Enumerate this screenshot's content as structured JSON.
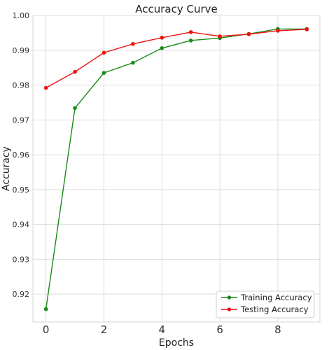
{
  "chart_data": {
    "type": "line",
    "title": "Accuracy Curve",
    "xlabel": "Epochs",
    "ylabel": "Accuracy",
    "xlim": [
      -0.45,
      9.45
    ],
    "ylim": [
      0.912,
      1.0
    ],
    "xticks": [
      0,
      2,
      4,
      6,
      8
    ],
    "yticks": [
      0.92,
      0.93,
      0.94,
      0.95,
      0.96,
      0.97,
      0.98,
      0.99,
      1.0
    ],
    "ytick_labels": [
      "0.92",
      "0.93",
      "0.94",
      "0.95",
      "0.96",
      "0.97",
      "0.98",
      "0.99",
      "1.00"
    ],
    "x": [
      0,
      1,
      2,
      3,
      4,
      5,
      6,
      7,
      8,
      9
    ],
    "grid": true,
    "legend_position": "bottom-right",
    "series": [
      {
        "name": "Training Accuracy",
        "color": "#1a8a1a",
        "values": [
          0.9157,
          0.9734,
          0.9835,
          0.9864,
          0.9906,
          0.9928,
          0.9935,
          0.9947,
          0.9961,
          0.9961
        ]
      },
      {
        "name": "Testing Accuracy",
        "color": "#ee1111",
        "values": [
          0.9792,
          0.9838,
          0.9893,
          0.9918,
          0.9936,
          0.9952,
          0.994,
          0.9946,
          0.9956,
          0.996
        ]
      }
    ]
  }
}
